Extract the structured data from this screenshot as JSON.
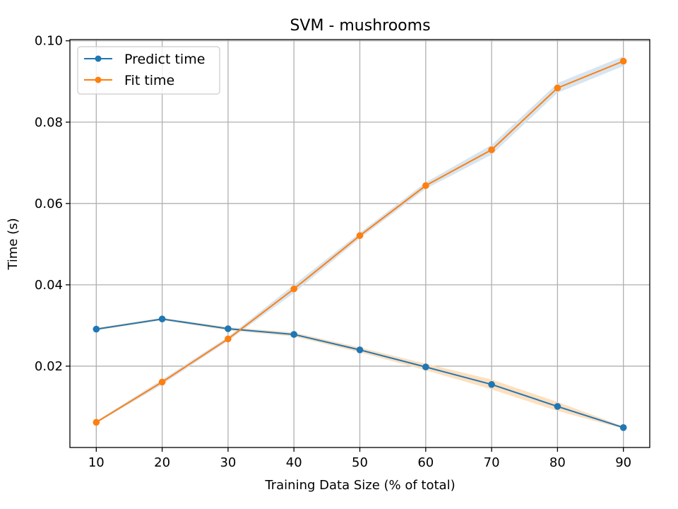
{
  "chart_data": {
    "type": "line",
    "title": "SVM - mushrooms",
    "xlabel": "Training Data Size (% of total)",
    "ylabel": "Time (s)",
    "x": [
      10,
      20,
      30,
      40,
      50,
      60,
      70,
      80,
      90
    ],
    "xlim": [
      6,
      94
    ],
    "ylim": [
      0.0,
      0.1003
    ],
    "xticks": [
      10,
      20,
      30,
      40,
      50,
      60,
      70,
      80,
      90
    ],
    "xtick_labels": [
      "10",
      "20",
      "30",
      "40",
      "50",
      "60",
      "70",
      "80",
      "90"
    ],
    "yticks": [
      0.02,
      0.04,
      0.06,
      0.08,
      0.1
    ],
    "ytick_labels": [
      "0.02",
      "0.04",
      "0.06",
      "0.08",
      "0.10"
    ],
    "grid": true,
    "legend_position": "top-left",
    "series": [
      {
        "name": "Predict time",
        "color": "#1f77b4",
        "band_color": "#ffd9b3",
        "values": [
          0.0291,
          0.0316,
          0.0292,
          0.0278,
          0.024,
          0.0198,
          0.0155,
          0.0101,
          0.0049
        ],
        "band_half_width": [
          0.0003,
          0.0003,
          0.0004,
          0.0005,
          0.0006,
          0.0008,
          0.0012,
          0.0011,
          0.0003
        ]
      },
      {
        "name": "Fit time",
        "color": "#ff7f0e",
        "band_color": "#cfe0ee",
        "values": [
          0.0062,
          0.0161,
          0.0267,
          0.039,
          0.0521,
          0.0644,
          0.0732,
          0.0884,
          0.095
        ],
        "band_half_width": [
          0.0003,
          0.0006,
          0.0005,
          0.001,
          0.0007,
          0.0008,
          0.0012,
          0.0012,
          0.0012
        ]
      }
    ]
  }
}
